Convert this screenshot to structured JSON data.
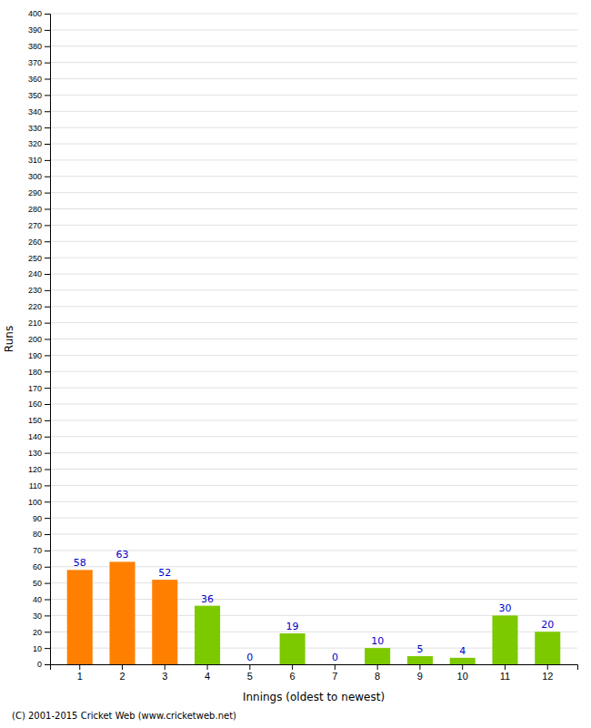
{
  "chart_data": {
    "type": "bar",
    "categories": [
      "1",
      "2",
      "3",
      "4",
      "5",
      "6",
      "7",
      "8",
      "9",
      "10",
      "11",
      "12"
    ],
    "values": [
      58,
      63,
      52,
      36,
      0,
      19,
      0,
      10,
      5,
      4,
      30,
      20
    ],
    "colors": [
      "#ff8000",
      "#ff8000",
      "#ff8000",
      "#7dc900",
      "#7dc900",
      "#7dc900",
      "#7dc900",
      "#7dc900",
      "#7dc900",
      "#7dc900",
      "#7dc900",
      "#7dc900"
    ],
    "xlabel": "Innings (oldest to newest)",
    "ylabel": "Runs",
    "ylim": [
      0,
      400
    ],
    "yticks": [
      0,
      10,
      20,
      30,
      40,
      50,
      60,
      70,
      80,
      90,
      100,
      110,
      120,
      130,
      140,
      150,
      160,
      170,
      180,
      190,
      200,
      210,
      220,
      230,
      240,
      250,
      260,
      270,
      280,
      290,
      300,
      310,
      320,
      330,
      340,
      350,
      360,
      370,
      380,
      390,
      400
    ],
    "grid": true,
    "data_labels": true,
    "annotations": [
      "(C) 2001-2015 Cricket Web (www.cricketweb.net)"
    ]
  }
}
